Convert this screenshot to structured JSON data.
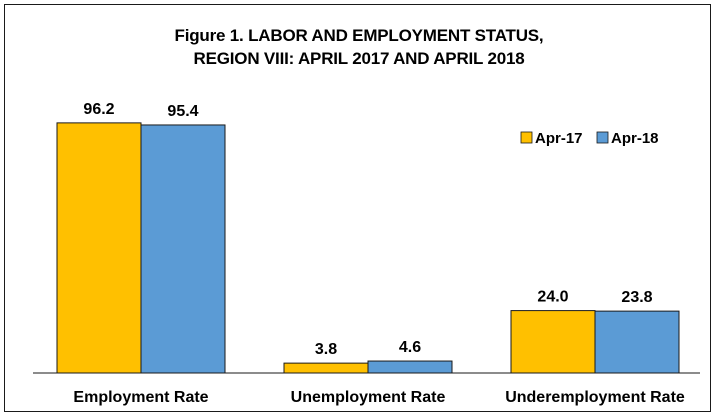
{
  "chart_data": {
    "type": "bar",
    "title_line1": "Figure 1. LABOR AND EMPLOYMENT STATUS,",
    "title_line2": "REGION VIII: APRIL 2017 AND APRIL 2018",
    "categories": [
      "Employment Rate",
      "Unemployment Rate",
      "Underemployment Rate"
    ],
    "series": [
      {
        "name": "Apr-17",
        "color": "#ffc000",
        "values": [
          96.2,
          3.8,
          24.0
        ]
      },
      {
        "name": "Apr-18",
        "color": "#5b9bd5",
        "values": [
          95.4,
          4.6,
          23.8
        ]
      }
    ],
    "value_format_decimals": 1,
    "ylim": [
      0,
      100
    ],
    "grid": false,
    "legend_position": "top-right"
  }
}
